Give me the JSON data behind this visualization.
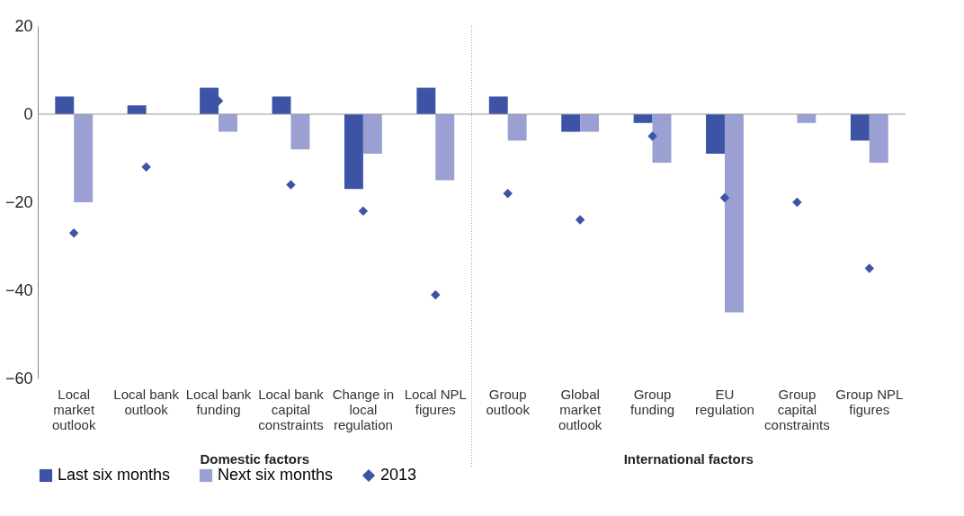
{
  "chart_data": {
    "type": "bar",
    "categories": [
      "Local market outlook",
      "Local bank outlook",
      "Local bank funding",
      "Local bank capital constraints",
      "Change in local regulation",
      "Local NPL figures",
      "Group outlook",
      "Global market outlook",
      "Group funding",
      "EU regulation",
      "Group capital constraints",
      "Group NPL figures"
    ],
    "series": [
      {
        "name": "Last six months",
        "color": "#3d54a6",
        "values": [
          4,
          2,
          6,
          4,
          -17,
          6,
          4,
          -4,
          -2,
          -9,
          0,
          -6
        ]
      },
      {
        "name": "Next six months",
        "color": "#9aa0d2",
        "values": [
          -20,
          0,
          -4,
          -8,
          -9,
          -15,
          -6,
          -4,
          -11,
          -45,
          -2,
          -11
        ]
      },
      {
        "name": "2013",
        "type": "scatter",
        "color": "#3d54a6",
        "values": [
          -27,
          -12,
          3,
          -16,
          -22,
          -41,
          -18,
          -24,
          -5,
          -19,
          -20,
          -35
        ]
      }
    ],
    "ylim": [
      -60,
      20
    ],
    "yticks": [
      20,
      0,
      -20,
      -40,
      -60
    ],
    "grid": false,
    "legend": "bottom",
    "marker": "diamond",
    "ref_lines": [
      {
        "axis": "y",
        "value": 0
      },
      {
        "axis": "x",
        "value": "Group outlook",
        "line_style": "dotted"
      }
    ],
    "annotations": [
      "Domestic factors",
      "International factors"
    ]
  }
}
